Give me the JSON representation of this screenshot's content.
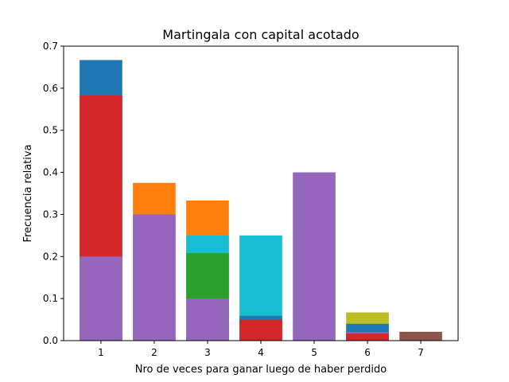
{
  "chart_data": {
    "type": "bar",
    "title": "Martingala con capital acotado",
    "xlabel": "Nro de veces para ganar luego de haber perdido",
    "ylabel": "Frecuencia relativa",
    "ylim": [
      0,
      0.7
    ],
    "xlim": [
      0.3,
      7.7
    ],
    "x_ticks": [
      "1",
      "2",
      "3",
      "4",
      "5",
      "6",
      "7"
    ],
    "y_ticks": [
      "0.0",
      "0.1",
      "0.2",
      "0.3",
      "0.4",
      "0.5",
      "0.6",
      "0.7"
    ],
    "y_tick_values": [
      0,
      0.1,
      0.2,
      0.3,
      0.4,
      0.5,
      0.6,
      0.7
    ],
    "grid": false,
    "legend": "none",
    "bars": [
      {
        "x": 1,
        "value": 0.667,
        "color": "#1f77b4"
      },
      {
        "x": 1,
        "value": 0.583,
        "color": "#d62728"
      },
      {
        "x": 1,
        "value": 0.2,
        "color": "#9467bd"
      },
      {
        "x": 2,
        "value": 0.375,
        "color": "#ff7f0e"
      },
      {
        "x": 2,
        "value": 0.3,
        "color": "#9467bd"
      },
      {
        "x": 3,
        "value": 0.333,
        "color": "#ff7f0e"
      },
      {
        "x": 3,
        "value": 0.25,
        "color": "#17becf"
      },
      {
        "x": 3,
        "value": 0.208,
        "color": "#2ca02c"
      },
      {
        "x": 3,
        "value": 0.1,
        "color": "#9467bd"
      },
      {
        "x": 4,
        "value": 0.25,
        "color": "#17becf"
      },
      {
        "x": 4,
        "value": 0.059,
        "color": "#1f77b4"
      },
      {
        "x": 4,
        "value": 0.05,
        "color": "#d62728"
      },
      {
        "x": 5,
        "value": 0.4,
        "color": "#9467bd"
      },
      {
        "x": 6,
        "value": 0.067,
        "color": "#bcbd22"
      },
      {
        "x": 6,
        "value": 0.04,
        "color": "#1f77b4"
      },
      {
        "x": 6,
        "value": 0.02,
        "color": "#9467bd"
      },
      {
        "x": 6,
        "value": 0.017,
        "color": "#d62728"
      },
      {
        "x": 7,
        "value": 0.021,
        "color": "#8c564b"
      }
    ]
  }
}
